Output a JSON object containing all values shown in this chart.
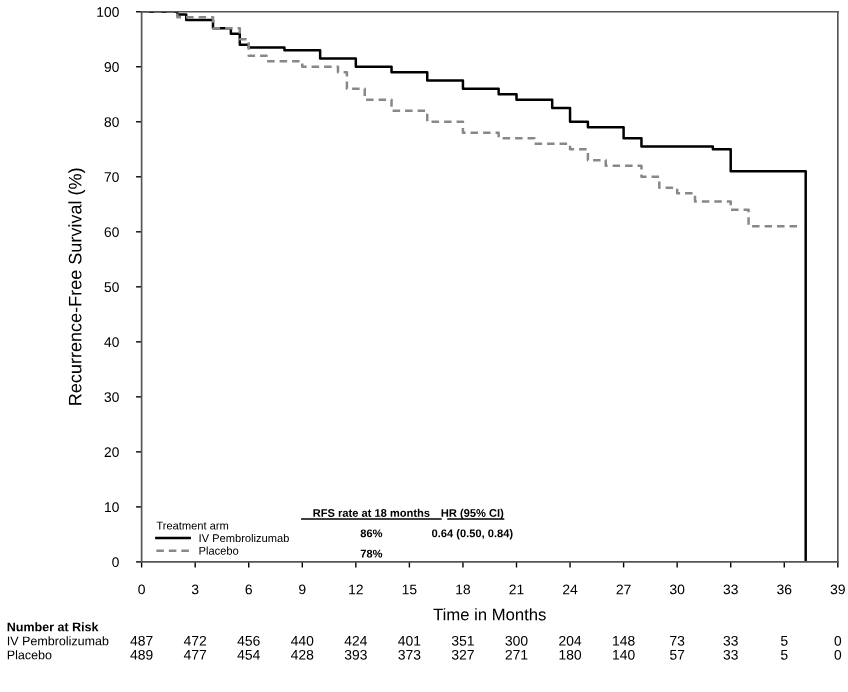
{
  "chart_data": {
    "type": "step",
    "xlabel": "Time in Months",
    "ylabel": "Recurrence-Free Survival (%)",
    "legend_title": "Treatment arm",
    "xlim": [
      0,
      39
    ],
    "xticks": [
      0,
      3,
      6,
      9,
      12,
      15,
      18,
      21,
      24,
      27,
      30,
      33,
      36,
      39
    ],
    "ylim": [
      0,
      100
    ],
    "yticks": [
      0,
      10,
      20,
      30,
      40,
      50,
      60,
      70,
      80,
      90,
      100
    ],
    "grid": false,
    "legend": "bottom left",
    "series": [
      {
        "name": "IV Pembrolizumab",
        "color": "#000000",
        "line_style": "solid",
        "x": [
          0,
          2,
          2.5,
          4,
          5,
          5.5,
          6,
          8,
          10,
          12,
          14,
          16,
          18,
          20,
          21,
          23,
          24,
          25,
          27,
          28,
          32,
          33,
          37.2,
          37.2
        ],
        "values": [
          100,
          99.5,
          98.5,
          97,
          96,
          94,
          93.5,
          93,
          91.5,
          90,
          89,
          87.5,
          86,
          85,
          84,
          82.5,
          80,
          79,
          77,
          75.5,
          75,
          71,
          71,
          0
        ]
      },
      {
        "name": "Placebo",
        "color": "#888888",
        "line_style": "dashed",
        "x": [
          0,
          2,
          4,
          5.5,
          6,
          7,
          9,
          11,
          11.5,
          12.5,
          14,
          16,
          18,
          20,
          22,
          24,
          25,
          26,
          28,
          29,
          30,
          31,
          33,
          34,
          37
        ],
        "values": [
          100,
          99,
          97,
          95,
          92,
          91,
          90,
          89,
          86,
          84,
          82,
          80,
          78,
          77,
          76,
          75,
          73,
          72,
          70,
          68,
          67,
          65.5,
          64,
          61,
          61
        ]
      }
    ],
    "annotations": [
      "RFS rate at 18 months",
      "HR (95% CI)",
      "86%",
      "0.64 (0.50, 0.84)",
      "78%",
      "Number at Risk",
      "487",
      "472",
      "456",
      "440",
      "424",
      "401",
      "351",
      "300",
      "204",
      "148",
      "73",
      "33",
      "5",
      "0",
      "489",
      "477",
      "454",
      "428",
      "393",
      "373",
      "327",
      "271",
      "180",
      "140",
      "57",
      "33",
      "5",
      "0"
    ]
  }
}
